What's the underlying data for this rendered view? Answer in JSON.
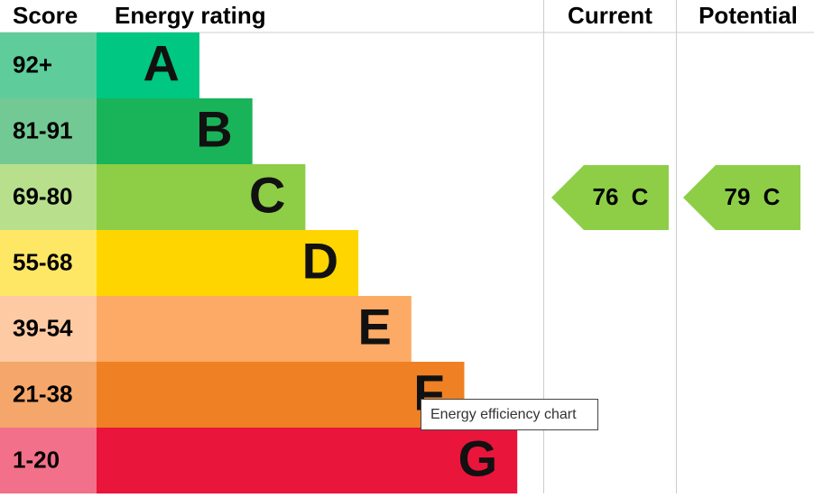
{
  "header": {
    "score": "Score",
    "rating": "Energy rating",
    "current": "Current",
    "potential": "Potential"
  },
  "bands": [
    {
      "score": "92+",
      "letter": "A"
    },
    {
      "score": "81-91",
      "letter": "B"
    },
    {
      "score": "69-80",
      "letter": "C"
    },
    {
      "score": "55-68",
      "letter": "D"
    },
    {
      "score": "39-54",
      "letter": "E"
    },
    {
      "score": "21-38",
      "letter": "F"
    },
    {
      "score": "1-20",
      "letter": "G"
    }
  ],
  "current": {
    "value": 76,
    "letter": "C"
  },
  "potential": {
    "value": 79,
    "letter": "C"
  },
  "tooltip": "Energy efficiency chart"
}
